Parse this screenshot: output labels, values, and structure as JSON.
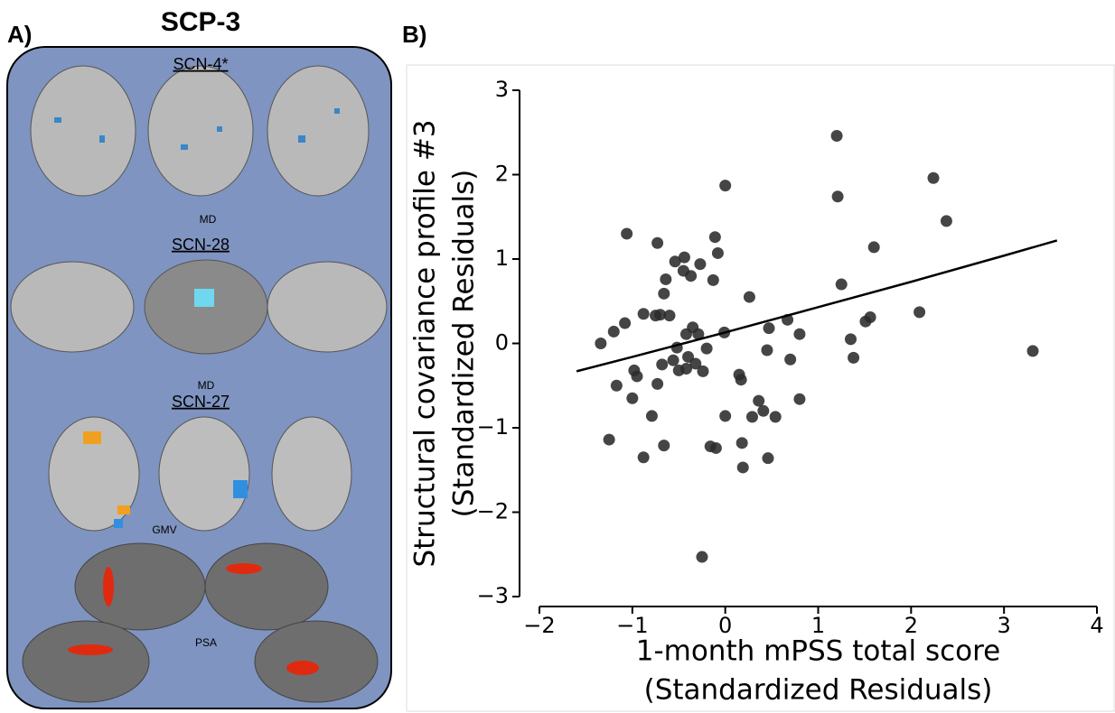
{
  "panel_a": {
    "label": "A)",
    "title": "SCP-3",
    "sections": [
      {
        "title": "SCN-4*",
        "modality": "MD"
      },
      {
        "title": "SCN-28",
        "modality": "MD"
      },
      {
        "title": "SCN-27",
        "modality": "GMV"
      }
    ],
    "surface_modality": "PSA"
  },
  "chart_data": {
    "type": "scatter",
    "panel_label": "B)",
    "xlabel": [
      "1-month mPSS total score",
      "(Standardized Residuals)"
    ],
    "ylabel": [
      "Structural covariance profile #3",
      "(Standardized Residuals)"
    ],
    "xlim": [
      -2,
      4
    ],
    "ylim": [
      -3,
      3
    ],
    "xticks": [
      {
        "value": -2,
        "label": "−2"
      },
      {
        "value": -1,
        "label": "−1"
      },
      0,
      1,
      2,
      3,
      4
    ],
    "yticks": [
      {
        "value": -3,
        "label": "−3"
      },
      {
        "value": -2,
        "label": "−2"
      },
      {
        "value": -1,
        "label": "−1"
      },
      0,
      1,
      2,
      3
    ],
    "color": "#2b2b2b",
    "x": [
      -1.34,
      -1.2,
      -1.08,
      -1.06,
      -1.17,
      -1.25,
      -0.98,
      -0.95,
      -1.0,
      -0.88,
      -0.88,
      -0.79,
      -0.73,
      -0.75,
      -0.7,
      -0.66,
      -0.64,
      -0.6,
      -0.73,
      -0.68,
      -0.66,
      -0.56,
      -0.54,
      -0.52,
      -0.5,
      -0.45,
      -0.42,
      -0.4,
      -0.44,
      -0.37,
      -0.35,
      -0.32,
      -0.42,
      -0.27,
      -0.29,
      -0.24,
      -0.2,
      -0.25,
      -0.16,
      -0.11,
      -0.1,
      -0.13,
      -0.08,
      -0.01,
      0.0,
      0.0,
      0.15,
      0.17,
      0.18,
      0.19,
      0.26,
      0.29,
      0.36,
      0.41,
      0.45,
      0.47,
      0.46,
      0.54,
      0.67,
      0.7,
      0.8,
      0.8,
      1.2,
      1.21,
      1.25,
      1.35,
      1.38,
      1.51,
      1.56,
      1.6,
      2.09,
      2.24,
      2.38,
      3.31
    ],
    "values": [
      0.0,
      0.14,
      0.24,
      1.3,
      -0.5,
      -1.14,
      -0.32,
      -0.39,
      -0.65,
      0.35,
      -1.35,
      -0.86,
      1.19,
      0.33,
      0.34,
      0.59,
      0.76,
      0.33,
      -0.48,
      -0.25,
      -1.21,
      -0.2,
      0.97,
      -0.05,
      -0.32,
      0.86,
      0.11,
      -0.16,
      1.02,
      0.8,
      0.19,
      -0.24,
      -0.3,
      0.94,
      0.11,
      -0.33,
      -0.06,
      -2.53,
      -1.22,
      1.26,
      -1.24,
      0.75,
      1.07,
      0.13,
      1.87,
      -0.86,
      -0.37,
      -0.43,
      -1.18,
      -1.47,
      0.55,
      -0.87,
      -0.68,
      -0.8,
      -0.08,
      0.18,
      -1.36,
      -0.87,
      0.28,
      -0.19,
      0.11,
      -0.66,
      2.46,
      1.74,
      0.7,
      0.05,
      -0.17,
      0.26,
      0.31,
      1.14,
      0.37,
      1.96,
      1.45,
      -0.09
    ],
    "fit": {
      "color": "#000000",
      "x": [
        -1.6,
        -1,
        0,
        1,
        2,
        3,
        3.57
      ],
      "values": [
        -0.33,
        -0.16,
        0.13,
        0.43,
        0.73,
        1.04,
        1.22
      ]
    }
  }
}
